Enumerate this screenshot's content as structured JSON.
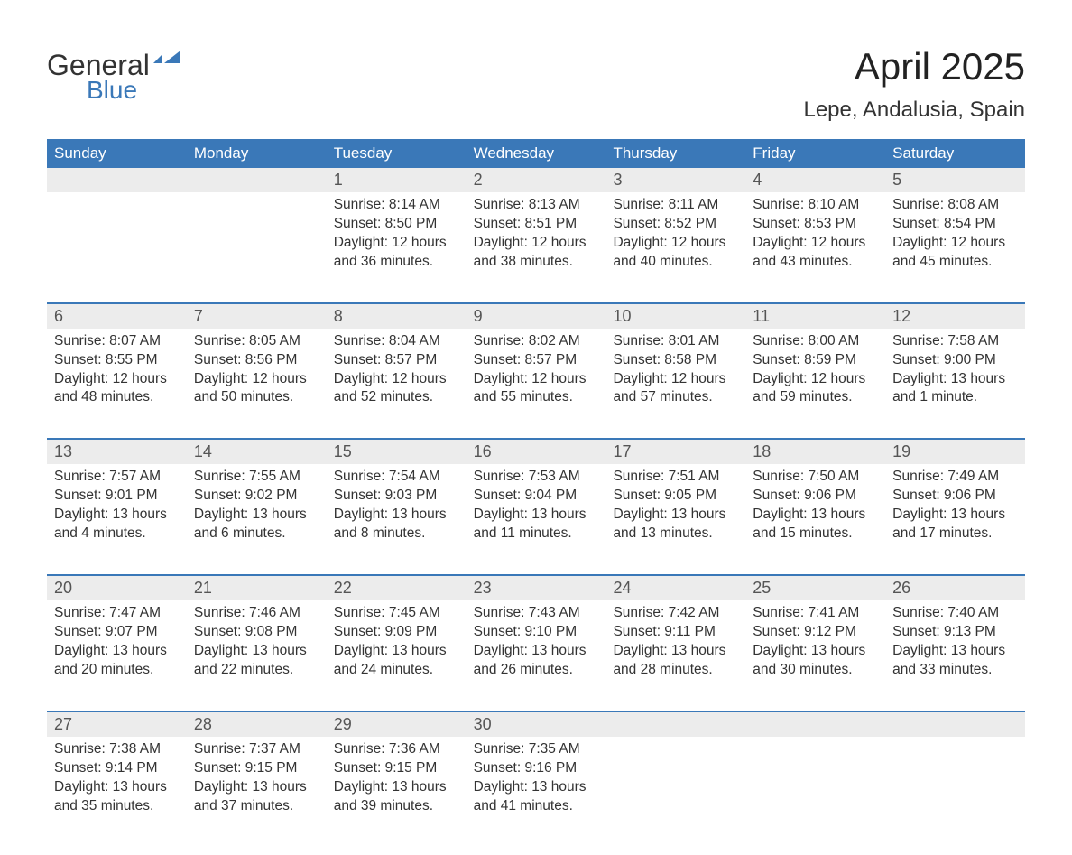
{
  "logo": {
    "text_general": "General",
    "text_blue": "Blue",
    "icon_color": "#3a78b8"
  },
  "title": "April 2025",
  "location": "Lepe, Andalusia, Spain",
  "colors": {
    "header_bg": "#3a78b8",
    "header_text": "#ffffff",
    "daynum_bg": "#ececec",
    "daynum_text": "#555555",
    "body_text": "#333333",
    "separator": "#3a78b8",
    "page_bg": "#ffffff"
  },
  "typography": {
    "title_fontsize": 42,
    "location_fontsize": 24,
    "weekday_fontsize": 17,
    "daynum_fontsize": 18,
    "details_fontsize": 15.5,
    "font_family": "Arial"
  },
  "weekdays": [
    "Sunday",
    "Monday",
    "Tuesday",
    "Wednesday",
    "Thursday",
    "Friday",
    "Saturday"
  ],
  "weeks": [
    {
      "days": [
        {
          "num": "",
          "sunrise": "",
          "sunset": "",
          "daylight": ""
        },
        {
          "num": "",
          "sunrise": "",
          "sunset": "",
          "daylight": ""
        },
        {
          "num": "1",
          "sunrise": "Sunrise: 8:14 AM",
          "sunset": "Sunset: 8:50 PM",
          "daylight": "Daylight: 12 hours and 36 minutes."
        },
        {
          "num": "2",
          "sunrise": "Sunrise: 8:13 AM",
          "sunset": "Sunset: 8:51 PM",
          "daylight": "Daylight: 12 hours and 38 minutes."
        },
        {
          "num": "3",
          "sunrise": "Sunrise: 8:11 AM",
          "sunset": "Sunset: 8:52 PM",
          "daylight": "Daylight: 12 hours and 40 minutes."
        },
        {
          "num": "4",
          "sunrise": "Sunrise: 8:10 AM",
          "sunset": "Sunset: 8:53 PM",
          "daylight": "Daylight: 12 hours and 43 minutes."
        },
        {
          "num": "5",
          "sunrise": "Sunrise: 8:08 AM",
          "sunset": "Sunset: 8:54 PM",
          "daylight": "Daylight: 12 hours and 45 minutes."
        }
      ]
    },
    {
      "days": [
        {
          "num": "6",
          "sunrise": "Sunrise: 8:07 AM",
          "sunset": "Sunset: 8:55 PM",
          "daylight": "Daylight: 12 hours and 48 minutes."
        },
        {
          "num": "7",
          "sunrise": "Sunrise: 8:05 AM",
          "sunset": "Sunset: 8:56 PM",
          "daylight": "Daylight: 12 hours and 50 minutes."
        },
        {
          "num": "8",
          "sunrise": "Sunrise: 8:04 AM",
          "sunset": "Sunset: 8:57 PM",
          "daylight": "Daylight: 12 hours and 52 minutes."
        },
        {
          "num": "9",
          "sunrise": "Sunrise: 8:02 AM",
          "sunset": "Sunset: 8:57 PM",
          "daylight": "Daylight: 12 hours and 55 minutes."
        },
        {
          "num": "10",
          "sunrise": "Sunrise: 8:01 AM",
          "sunset": "Sunset: 8:58 PM",
          "daylight": "Daylight: 12 hours and 57 minutes."
        },
        {
          "num": "11",
          "sunrise": "Sunrise: 8:00 AM",
          "sunset": "Sunset: 8:59 PM",
          "daylight": "Daylight: 12 hours and 59 minutes."
        },
        {
          "num": "12",
          "sunrise": "Sunrise: 7:58 AM",
          "sunset": "Sunset: 9:00 PM",
          "daylight": "Daylight: 13 hours and 1 minute."
        }
      ]
    },
    {
      "days": [
        {
          "num": "13",
          "sunrise": "Sunrise: 7:57 AM",
          "sunset": "Sunset: 9:01 PM",
          "daylight": "Daylight: 13 hours and 4 minutes."
        },
        {
          "num": "14",
          "sunrise": "Sunrise: 7:55 AM",
          "sunset": "Sunset: 9:02 PM",
          "daylight": "Daylight: 13 hours and 6 minutes."
        },
        {
          "num": "15",
          "sunrise": "Sunrise: 7:54 AM",
          "sunset": "Sunset: 9:03 PM",
          "daylight": "Daylight: 13 hours and 8 minutes."
        },
        {
          "num": "16",
          "sunrise": "Sunrise: 7:53 AM",
          "sunset": "Sunset: 9:04 PM",
          "daylight": "Daylight: 13 hours and 11 minutes."
        },
        {
          "num": "17",
          "sunrise": "Sunrise: 7:51 AM",
          "sunset": "Sunset: 9:05 PM",
          "daylight": "Daylight: 13 hours and 13 minutes."
        },
        {
          "num": "18",
          "sunrise": "Sunrise: 7:50 AM",
          "sunset": "Sunset: 9:06 PM",
          "daylight": "Daylight: 13 hours and 15 minutes."
        },
        {
          "num": "19",
          "sunrise": "Sunrise: 7:49 AM",
          "sunset": "Sunset: 9:06 PM",
          "daylight": "Daylight: 13 hours and 17 minutes."
        }
      ]
    },
    {
      "days": [
        {
          "num": "20",
          "sunrise": "Sunrise: 7:47 AM",
          "sunset": "Sunset: 9:07 PM",
          "daylight": "Daylight: 13 hours and 20 minutes."
        },
        {
          "num": "21",
          "sunrise": "Sunrise: 7:46 AM",
          "sunset": "Sunset: 9:08 PM",
          "daylight": "Daylight: 13 hours and 22 minutes."
        },
        {
          "num": "22",
          "sunrise": "Sunrise: 7:45 AM",
          "sunset": "Sunset: 9:09 PM",
          "daylight": "Daylight: 13 hours and 24 minutes."
        },
        {
          "num": "23",
          "sunrise": "Sunrise: 7:43 AM",
          "sunset": "Sunset: 9:10 PM",
          "daylight": "Daylight: 13 hours and 26 minutes."
        },
        {
          "num": "24",
          "sunrise": "Sunrise: 7:42 AM",
          "sunset": "Sunset: 9:11 PM",
          "daylight": "Daylight: 13 hours and 28 minutes."
        },
        {
          "num": "25",
          "sunrise": "Sunrise: 7:41 AM",
          "sunset": "Sunset: 9:12 PM",
          "daylight": "Daylight: 13 hours and 30 minutes."
        },
        {
          "num": "26",
          "sunrise": "Sunrise: 7:40 AM",
          "sunset": "Sunset: 9:13 PM",
          "daylight": "Daylight: 13 hours and 33 minutes."
        }
      ]
    },
    {
      "days": [
        {
          "num": "27",
          "sunrise": "Sunrise: 7:38 AM",
          "sunset": "Sunset: 9:14 PM",
          "daylight": "Daylight: 13 hours and 35 minutes."
        },
        {
          "num": "28",
          "sunrise": "Sunrise: 7:37 AM",
          "sunset": "Sunset: 9:15 PM",
          "daylight": "Daylight: 13 hours and 37 minutes."
        },
        {
          "num": "29",
          "sunrise": "Sunrise: 7:36 AM",
          "sunset": "Sunset: 9:15 PM",
          "daylight": "Daylight: 13 hours and 39 minutes."
        },
        {
          "num": "30",
          "sunrise": "Sunrise: 7:35 AM",
          "sunset": "Sunset: 9:16 PM",
          "daylight": "Daylight: 13 hours and 41 minutes."
        },
        {
          "num": "",
          "sunrise": "",
          "sunset": "",
          "daylight": ""
        },
        {
          "num": "",
          "sunrise": "",
          "sunset": "",
          "daylight": ""
        },
        {
          "num": "",
          "sunrise": "",
          "sunset": "",
          "daylight": ""
        }
      ]
    }
  ]
}
